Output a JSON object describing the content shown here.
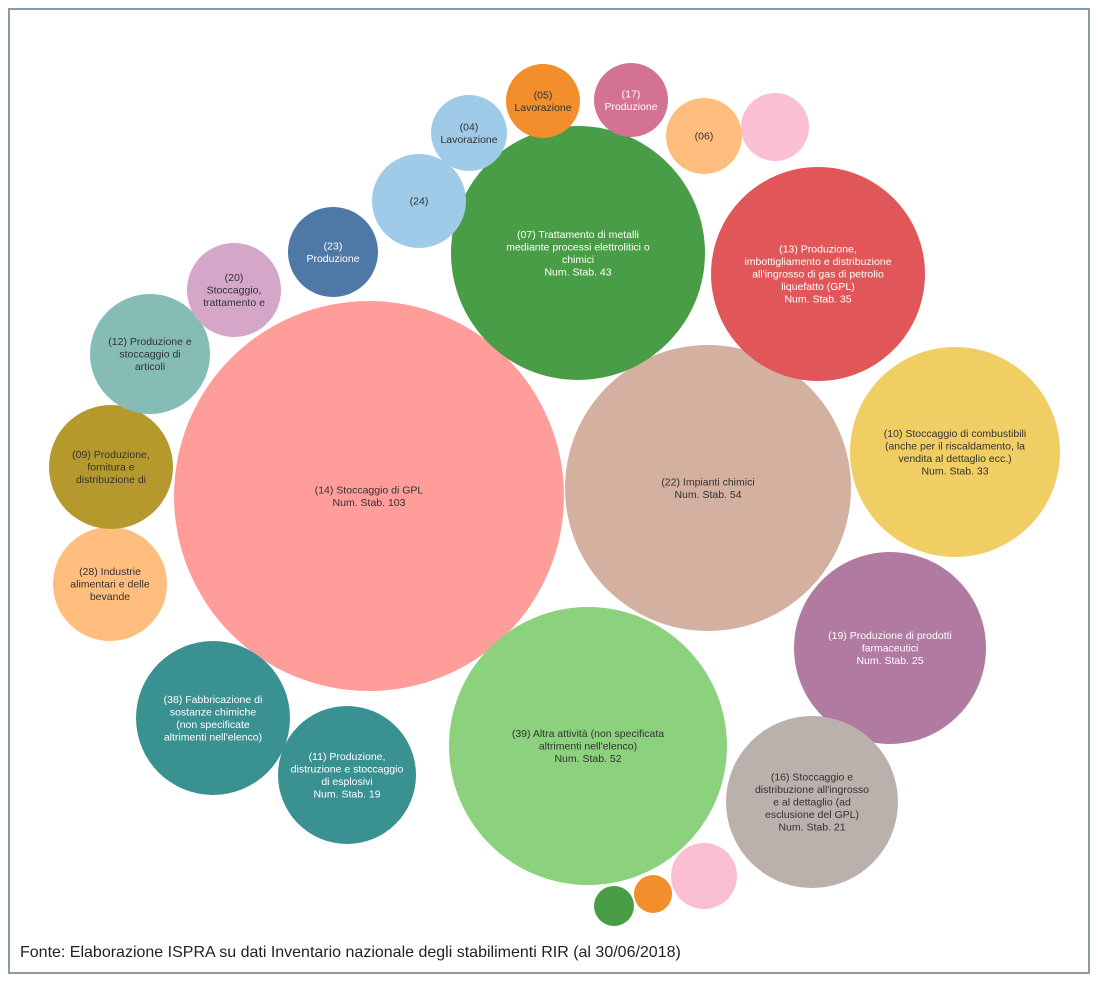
{
  "chart_data": {
    "type": "bubble",
    "source": "Fonte: Elaborazione ISPRA su dati Inventario nazionale degli stabilimenti RIR (al 30/06/2018)",
    "bubbles": [
      {
        "lines": [
          "(14) Stoccaggio di GPL",
          "Num. Stab. 103"
        ],
        "value": 103,
        "color": "#ff9d9a"
      },
      {
        "lines": [
          "(22) Impianti chimici",
          "Num. Stab. 54"
        ],
        "value": 54,
        "color": "#d4b0a0"
      },
      {
        "lines": [
          "(39) Altra attività (non specificata",
          "altrimenti nell'elenco)",
          "Num. Stab. 52"
        ],
        "value": 52,
        "color": "#8cd17d"
      },
      {
        "lines": [
          "(07) Trattamento di metalli",
          "mediante processi elettrolitici o",
          "chimici",
          "Num. Stab. 43"
        ],
        "value": 43,
        "color": "#499d47"
      },
      {
        "lines": [
          "(13) Produzione,",
          "imbottigliamento e distribuzione",
          "all'ingrosso di gas di petrolio",
          "liquefatto (GPL)",
          "Num. Stab. 35"
        ],
        "value": 35,
        "color": "#e15759"
      },
      {
        "lines": [
          "(10) Stoccaggio di combustibili",
          "(anche per il riscaldamento, la",
          "vendita al dettaglio ecc.)",
          "Num. Stab. 33"
        ],
        "value": 33,
        "color": "#f1ce63"
      },
      {
        "lines": [
          "(19) Produzione di prodotti",
          "farmaceutici",
          "Num. Stab. 25"
        ],
        "value": 25,
        "color": "#b07aa1"
      },
      {
        "lines": [
          "(16) Stoccaggio e",
          "distribuzione all'ingrosso",
          "e al dettaglio (ad",
          "esclusione del GPL)",
          "Num. Stab. 21"
        ],
        "value": 21,
        "color": "#bab0ac"
      },
      {
        "lines": [
          "(11) Produzione,",
          "distruzione e stoccaggio",
          "di esplosivi",
          "Num. Stab. 19"
        ],
        "value": 19,
        "color": "#3a9191"
      },
      {
        "lines": [
          "(38) Fabbricazione di",
          "sostanze chimiche",
          "(non specificate",
          "altrimenti nell'elenco)"
        ],
        "color": "#3a9191"
      },
      {
        "lines": [
          "(28) Industrie",
          "alimentari e delle",
          "bevande"
        ],
        "color": "#ffbe7d"
      },
      {
        "lines": [
          "(09) Produzione,",
          "fornitura e",
          "distribuzione di"
        ],
        "color": "#b6992d"
      },
      {
        "lines": [
          "(12) Produzione e",
          "stoccaggio di",
          "articoli"
        ],
        "color": "#86bcb6"
      },
      {
        "lines": [
          "(20)",
          "Stoccaggio,",
          "trattamento e"
        ],
        "color": "#d4a6c8"
      },
      {
        "lines": [
          "(23)",
          "Produzione"
        ],
        "color": "#4e79a7"
      },
      {
        "lines": [
          "(24)"
        ],
        "color": "#a0cbe8"
      },
      {
        "lines": [
          "(04)",
          "Lavorazione"
        ],
        "color": "#a0cbe8"
      },
      {
        "lines": [
          "(05)",
          "Lavorazione"
        ],
        "color": "#f28e2b"
      },
      {
        "lines": [
          "(17)",
          "Produzione"
        ],
        "color": "#d37295"
      },
      {
        "lines": [
          "(06)"
        ],
        "color": "#ffbe7d"
      },
      {
        "lines": [],
        "color": "#fabfd2"
      },
      {
        "lines": [],
        "color": "#fabfd2"
      },
      {
        "lines": [],
        "color": "#f28e2b"
      },
      {
        "lines": [],
        "color": "#499d47"
      }
    ]
  }
}
